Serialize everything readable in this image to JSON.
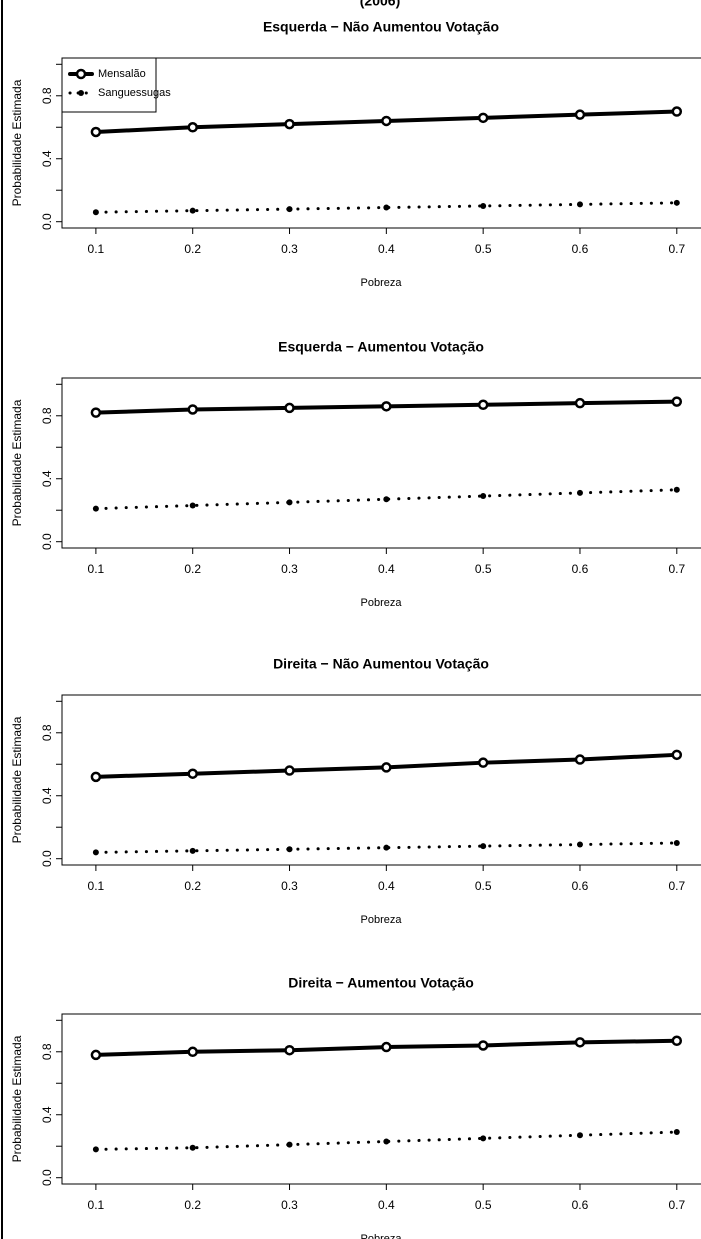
{
  "caption": "(2006)",
  "chart_data": [
    {
      "type": "line",
      "title": "Esquerda − Não Aumentou Votação",
      "xlabel": "Pobreza",
      "ylabel": "Probabilidade Estimada",
      "x": [
        0.1,
        0.2,
        0.3,
        0.4,
        0.5,
        0.6,
        0.7
      ],
      "series": [
        {
          "name": "Mensalão",
          "color": "#000000",
          "line_style": "solid",
          "values": [
            0.57,
            0.6,
            0.62,
            0.64,
            0.66,
            0.68,
            0.7
          ]
        },
        {
          "name": "Sanguessugas",
          "color": "#000000",
          "line_style": "dotted",
          "values": [
            0.06,
            0.07,
            0.08,
            0.09,
            0.1,
            0.11,
            0.12
          ]
        }
      ],
      "xlim": [
        0.065,
        0.725
      ],
      "xticks": [
        0.1,
        0.2,
        0.3,
        0.4,
        0.5,
        0.6,
        0.7
      ],
      "ylim": [
        -0.04,
        1.04
      ],
      "yticks": [
        {
          "value": 0,
          "label": "0.0"
        },
        0.4,
        0.8
      ],
      "minor_yticks": [
        0.2,
        0.6,
        1.0
      ],
      "legend": "topleft"
    },
    {
      "type": "line",
      "title": "Esquerda − Aumentou Votação",
      "xlabel": "Pobreza",
      "ylabel": "Probabilidade Estimada",
      "x": [
        0.1,
        0.2,
        0.3,
        0.4,
        0.5,
        0.6,
        0.7
      ],
      "series": [
        {
          "name": "Mensalão",
          "color": "#000000",
          "line_style": "solid",
          "values": [
            0.82,
            0.84,
            0.85,
            0.86,
            0.87,
            0.88,
            0.89
          ]
        },
        {
          "name": "Sanguessugas",
          "color": "#000000",
          "line_style": "dotted",
          "values": [
            0.21,
            0.23,
            0.25,
            0.27,
            0.29,
            0.31,
            0.33
          ]
        }
      ],
      "xlim": [
        0.065,
        0.725
      ],
      "xticks": [
        0.1,
        0.2,
        0.3,
        0.4,
        0.5,
        0.6,
        0.7
      ],
      "ylim": [
        -0.04,
        1.04
      ],
      "yticks": [
        {
          "value": 0,
          "label": "0.0"
        },
        0.4,
        0.8
      ],
      "minor_yticks": [
        0.2,
        0.6,
        1.0
      ]
    },
    {
      "type": "line",
      "title": "Direita − Não Aumentou Votação",
      "xlabel": "Pobreza",
      "ylabel": "Probabilidade Estimada",
      "x": [
        0.1,
        0.2,
        0.3,
        0.4,
        0.5,
        0.6,
        0.7
      ],
      "series": [
        {
          "name": "Mensalão",
          "color": "#000000",
          "line_style": "solid",
          "values": [
            0.52,
            0.54,
            0.56,
            0.58,
            0.61,
            0.63,
            0.66
          ]
        },
        {
          "name": "Sanguessugas",
          "color": "#000000",
          "line_style": "dotted",
          "values": [
            0.04,
            0.05,
            0.06,
            0.07,
            0.08,
            0.09,
            0.1
          ]
        }
      ],
      "xlim": [
        0.065,
        0.725
      ],
      "xticks": [
        0.1,
        0.2,
        0.3,
        0.4,
        0.5,
        0.6,
        0.7
      ],
      "ylim": [
        -0.04,
        1.04
      ],
      "yticks": [
        {
          "value": 0,
          "label": "0.0"
        },
        0.4,
        0.8
      ],
      "minor_yticks": [
        0.2,
        0.6,
        1.0
      ]
    },
    {
      "type": "line",
      "title": "Direita − Aumentou Votação",
      "xlabel": "Pobreza",
      "ylabel": "Probabilidade Estimada",
      "x": [
        0.1,
        0.2,
        0.3,
        0.4,
        0.5,
        0.6,
        0.7
      ],
      "series": [
        {
          "name": "Mensalão",
          "color": "#000000",
          "line_style": "solid",
          "values": [
            0.78,
            0.8,
            0.81,
            0.83,
            0.84,
            0.86,
            0.87
          ]
        },
        {
          "name": "Sanguessugas",
          "color": "#000000",
          "line_style": "dotted",
          "values": [
            0.18,
            0.19,
            0.21,
            0.23,
            0.25,
            0.27,
            0.29
          ]
        }
      ],
      "xlim": [
        0.065,
        0.725
      ],
      "xticks": [
        0.1,
        0.2,
        0.3,
        0.4,
        0.5,
        0.6,
        0.7
      ],
      "ylim": [
        -0.04,
        1.04
      ],
      "yticks": [
        {
          "value": 0,
          "label": "0.0"
        },
        0.4,
        0.8
      ],
      "minor_yticks": [
        0.2,
        0.6,
        1.0
      ]
    }
  ]
}
